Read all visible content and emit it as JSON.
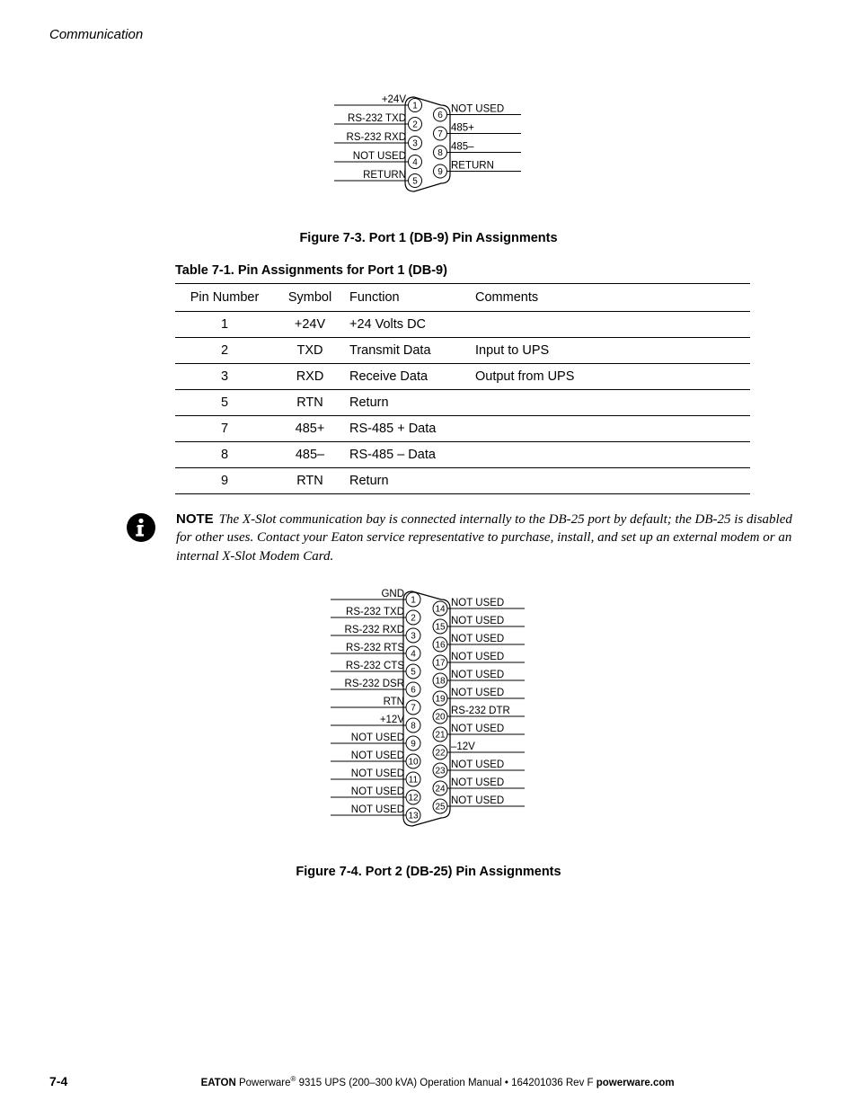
{
  "header": {
    "text": "Communication"
  },
  "colors": {
    "black": "#000000",
    "white": "#ffffff"
  },
  "figure1": {
    "caption": "Figure 7-3. Port 1 (DB-9) Pin Assignments",
    "left_labels": [
      "+24V",
      "RS-232 TXD",
      "RS-232 RXD",
      "NOT USED",
      "RETURN"
    ],
    "right_labels": [
      "NOT USED",
      "485+",
      "485–",
      "RETURN"
    ],
    "left_pins": [
      "1",
      "2",
      "3",
      "4",
      "5"
    ],
    "right_pins": [
      "6",
      "7",
      "8",
      "9"
    ]
  },
  "table1": {
    "title": "Table 7-1. Pin Assignments for Port 1 (DB-9)",
    "columns": [
      "Pin Number",
      "Symbol",
      "Function",
      "Comments"
    ],
    "rows": [
      [
        "1",
        "+24V",
        "+24 Volts DC",
        ""
      ],
      [
        "2",
        "TXD",
        "Transmit Data",
        "Input to UPS"
      ],
      [
        "3",
        "RXD",
        "Receive Data",
        "Output from UPS"
      ],
      [
        "5",
        "RTN",
        "Return",
        ""
      ],
      [
        "7",
        "485+",
        "RS-485 + Data",
        ""
      ],
      [
        "8",
        "485–",
        "RS-485 – Data",
        ""
      ],
      [
        "9",
        "RTN",
        "Return",
        ""
      ]
    ]
  },
  "note": {
    "label": "NOTE",
    "text": "The X-Slot communication bay is connected internally to the DB-25 port by default; the DB-25 is disabled for other uses. Contact your Eaton service representative to purchase, install, and set up an external modem or an internal X-Slot Modem Card."
  },
  "figure2": {
    "caption": "Figure 7-4. Port 2 (DB-25) Pin Assignments",
    "left_labels": [
      "GND",
      "RS-232 TXD",
      "RS-232 RXD",
      "RS-232 RTS",
      "RS-232 CTS",
      "RS-232 DSR",
      "RTN",
      "+12V",
      "NOT USED",
      "NOT USED",
      "NOT USED",
      "NOT USED",
      "NOT USED"
    ],
    "right_labels": [
      "NOT USED",
      "NOT USED",
      "NOT USED",
      "NOT USED",
      "NOT USED",
      "NOT USED",
      "RS-232 DTR",
      "NOT USED",
      "–12V",
      "NOT USED",
      "NOT USED",
      "NOT USED"
    ],
    "left_pins": [
      "1",
      "2",
      "3",
      "4",
      "5",
      "6",
      "7",
      "8",
      "9",
      "10",
      "11",
      "12",
      "13"
    ],
    "right_pins": [
      "14",
      "15",
      "16",
      "17",
      "18",
      "19",
      "20",
      "21",
      "22",
      "23",
      "24",
      "25"
    ]
  },
  "footer": {
    "page": "7-4",
    "brand": "EATON",
    "product": "Powerware",
    "reg": "®",
    "rest": " 9315 UPS (200–300 kVA) Operation Manual  •  164201036 Rev F  ",
    "site": "powerware.com"
  }
}
